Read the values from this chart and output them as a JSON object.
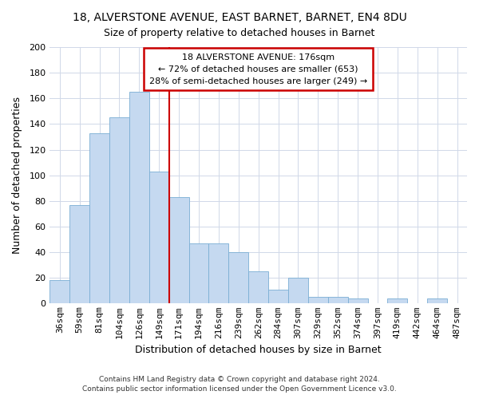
{
  "title1": "18, ALVERSTONE AVENUE, EAST BARNET, BARNET, EN4 8DU",
  "title2": "Size of property relative to detached houses in Barnet",
  "xlabel": "Distribution of detached houses by size in Barnet",
  "ylabel": "Number of detached properties",
  "bar_labels": [
    "36sqm",
    "59sqm",
    "81sqm",
    "104sqm",
    "126sqm",
    "149sqm",
    "171sqm",
    "194sqm",
    "216sqm",
    "239sqm",
    "262sqm",
    "284sqm",
    "307sqm",
    "329sqm",
    "352sqm",
    "374sqm",
    "397sqm",
    "419sqm",
    "442sqm",
    "464sqm",
    "487sqm"
  ],
  "bar_values": [
    18,
    77,
    133,
    145,
    165,
    103,
    83,
    47,
    47,
    40,
    25,
    11,
    20,
    5,
    5,
    4,
    0,
    4,
    0,
    4,
    0
  ],
  "bar_color": "#c5d9f0",
  "bar_edge_color": "#7aaed4",
  "vline_color": "#cc0000",
  "annotation_title": "18 ALVERSTONE AVENUE: 176sqm",
  "annotation_line1": "← 72% of detached houses are smaller (653)",
  "annotation_line2": "28% of semi-detached houses are larger (249) →",
  "annotation_box_color": "#ffffff",
  "annotation_box_edge": "#cc0000",
  "ylim": [
    0,
    200
  ],
  "yticks": [
    0,
    20,
    40,
    60,
    80,
    100,
    120,
    140,
    160,
    180,
    200
  ],
  "footer1": "Contains HM Land Registry data © Crown copyright and database right 2024.",
  "footer2": "Contains public sector information licensed under the Open Government Licence v3.0.",
  "title1_fontsize": 10,
  "title2_fontsize": 9,
  "xlabel_fontsize": 9,
  "ylabel_fontsize": 9,
  "tick_fontsize": 8,
  "footer_fontsize": 6.5,
  "annot_fontsize": 8
}
